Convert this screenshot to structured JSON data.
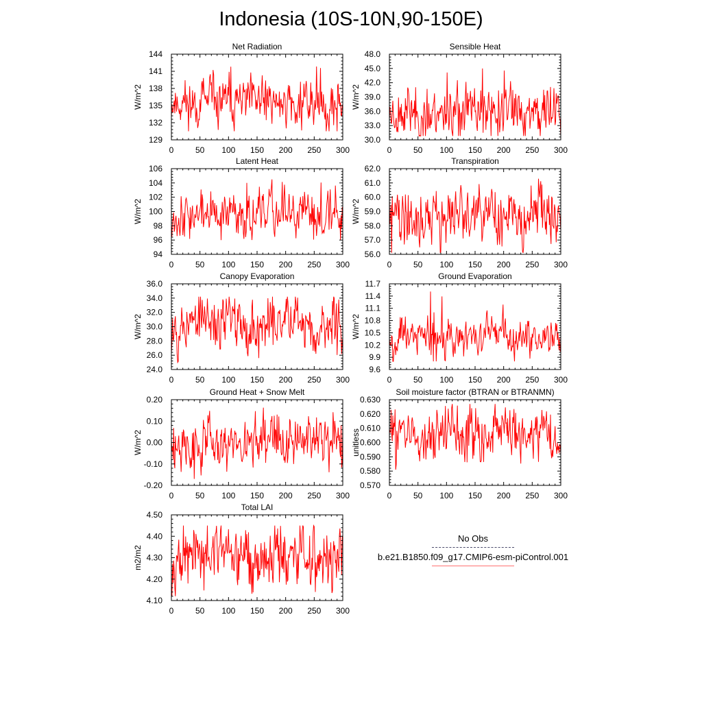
{
  "title": "Indonesia (10S-10N,90-150E)",
  "legend": {
    "obs_label": "No Obs",
    "model_label": "b.e21.B1850.f09_g17.CMIP6-esm-piControl.001",
    "obs_color": "#4a4a6a",
    "model_color": "#ff7070"
  },
  "line_color": "#ff0000",
  "chart_data": [
    {
      "type": "line",
      "title": "Net Radiation",
      "ylabel": "W/m^2",
      "xlim": [
        0,
        300
      ],
      "ylim": [
        129,
        144
      ],
      "xticks": [
        0,
        50,
        100,
        150,
        200,
        250,
        300
      ],
      "yticks": [
        129,
        132,
        135,
        138,
        141,
        144
      ],
      "ytick_labels": [
        "129",
        "132",
        "135",
        "138",
        "141",
        "144"
      ],
      "series_stats": {
        "mean": 135.5,
        "amp": 2.0,
        "min": 130.5,
        "max": 143.0,
        "seed": 11
      }
    },
    {
      "type": "line",
      "title": "Sensible Heat",
      "ylabel": "W/m^2",
      "xlim": [
        0,
        300
      ],
      "ylim": [
        30,
        48
      ],
      "xticks": [
        0,
        50,
        100,
        150,
        200,
        250,
        300
      ],
      "yticks": [
        30,
        33,
        36,
        39,
        42,
        45,
        48
      ],
      "ytick_labels": [
        "30.0",
        "33.0",
        "36.0",
        "39.0",
        "42.0",
        "45.0",
        "48.0"
      ],
      "series_stats": {
        "mean": 36.0,
        "amp": 2.6,
        "min": 30.8,
        "max": 45.0,
        "seed": 23
      }
    },
    {
      "type": "line",
      "title": "Latent Heat",
      "ylabel": "W/m^2",
      "xlim": [
        0,
        300
      ],
      "ylim": [
        94,
        106
      ],
      "xticks": [
        0,
        50,
        100,
        150,
        200,
        250,
        300
      ],
      "yticks": [
        94,
        96,
        98,
        100,
        102,
        104,
        106
      ],
      "ytick_labels": [
        "94",
        "96",
        "98",
        "100",
        "102",
        "104",
        "106"
      ],
      "series_stats": {
        "mean": 99.6,
        "amp": 1.5,
        "min": 96.0,
        "max": 104.5,
        "seed": 37
      }
    },
    {
      "type": "line",
      "title": "Transpiration",
      "ylabel": "W/m^2",
      "xlim": [
        0,
        300
      ],
      "ylim": [
        56,
        62
      ],
      "xticks": [
        0,
        50,
        100,
        150,
        200,
        250,
        300
      ],
      "yticks": [
        56,
        57,
        58,
        59,
        60,
        61,
        62
      ],
      "ytick_labels": [
        "56.0",
        "57.0",
        "58.0",
        "59.0",
        "60.0",
        "61.0",
        "62.0"
      ],
      "series_stats": {
        "mean": 58.6,
        "amp": 0.9,
        "min": 56.1,
        "max": 61.3,
        "seed": 41
      }
    },
    {
      "type": "line",
      "title": "Canopy Evaporation",
      "ylabel": "W/m^2",
      "xlim": [
        0,
        300
      ],
      "ylim": [
        24,
        36
      ],
      "xticks": [
        0,
        50,
        100,
        150,
        200,
        250,
        300
      ],
      "yticks": [
        24,
        26,
        28,
        30,
        32,
        34,
        36
      ],
      "ytick_labels": [
        "24.0",
        "26.0",
        "28.0",
        "30.0",
        "32.0",
        "34.0",
        "36.0"
      ],
      "series_stats": {
        "mean": 30.5,
        "amp": 2.0,
        "min": 25.0,
        "max": 34.2,
        "seed": 53
      }
    },
    {
      "type": "line",
      "title": "Ground Evaporation",
      "ylabel": "W/m^2",
      "xlim": [
        0,
        300
      ],
      "ylim": [
        9.6,
        11.7
      ],
      "xticks": [
        0,
        50,
        100,
        150,
        200,
        250,
        300
      ],
      "yticks": [
        9.6,
        9.9,
        10.2,
        10.5,
        10.8,
        11.1,
        11.4,
        11.7
      ],
      "ytick_labels": [
        "9.6",
        "9.9",
        "10.2",
        "10.5",
        "10.8",
        "11.1",
        "11.4",
        "11.7"
      ],
      "series_stats": {
        "mean": 10.45,
        "amp": 0.22,
        "min": 9.8,
        "max": 11.55,
        "seed": 67
      }
    },
    {
      "type": "line",
      "title": "Ground Heat + Snow Melt",
      "ylabel": "W/m^2",
      "xlim": [
        0,
        300
      ],
      "ylim": [
        -0.2,
        0.2
      ],
      "xticks": [
        0,
        50,
        100,
        150,
        200,
        250,
        300
      ],
      "yticks": [
        -0.2,
        -0.1,
        0.0,
        0.1,
        0.2
      ],
      "ytick_labels": [
        "-0.20",
        "-0.10",
        "0.00",
        "0.10",
        "0.20"
      ],
      "series_stats": {
        "mean": 0.0,
        "amp": 0.06,
        "min": -0.17,
        "max": 0.18,
        "seed": 79
      }
    },
    {
      "type": "line",
      "title": "Soil moisture factor (BTRAN or BTRANMN)",
      "ylabel": "unitless",
      "xlim": [
        0,
        300
      ],
      "ylim": [
        0.57,
        0.63
      ],
      "xticks": [
        0,
        50,
        100,
        150,
        200,
        250,
        300
      ],
      "yticks": [
        0.57,
        0.58,
        0.59,
        0.6,
        0.61,
        0.62,
        0.63
      ],
      "ytick_labels": [
        "0.570",
        "0.580",
        "0.590",
        "0.600",
        "0.610",
        "0.620",
        "0.630"
      ],
      "series_stats": {
        "mean": 0.606,
        "amp": 0.008,
        "min": 0.579,
        "max": 0.627,
        "seed": 83
      }
    },
    {
      "type": "line",
      "title": "Total LAI",
      "ylabel": "m2/m2",
      "xlim": [
        0,
        300
      ],
      "ylim": [
        4.1,
        4.5
      ],
      "xticks": [
        0,
        50,
        100,
        150,
        200,
        250,
        300
      ],
      "yticks": [
        4.1,
        4.2,
        4.3,
        4.4,
        4.5
      ],
      "ytick_labels": [
        "4.10",
        "4.20",
        "4.30",
        "4.40",
        "4.50"
      ],
      "series_stats": {
        "mean": 4.3,
        "amp": 0.07,
        "min": 4.12,
        "max": 4.45,
        "seed": 97
      }
    }
  ]
}
